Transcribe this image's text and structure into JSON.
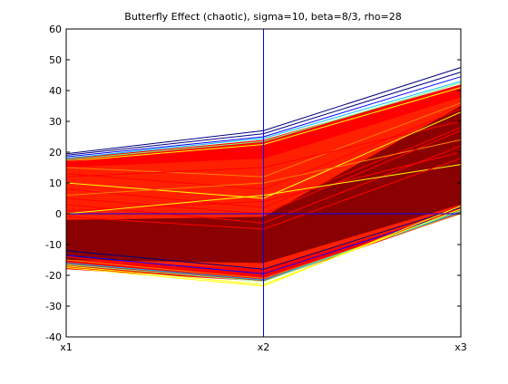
{
  "chart_data": {
    "type": "line",
    "title": "Butterfly Effect (chaotic), sigma=10, beta=8/3, rho=28",
    "categories": [
      "x1",
      "x2",
      "x3"
    ],
    "ylim": [
      -40,
      60
    ],
    "yticks": [
      "60",
      "50",
      "40",
      "30",
      "20",
      "10",
      "0",
      "-10",
      "-20",
      "-30",
      "-40"
    ],
    "grid": false,
    "legend": "none",
    "reference_lines": [
      {
        "axis": "x",
        "at": "x2",
        "color": "#0000ff"
      },
      {
        "axis": "y",
        "at": 0,
        "color": "#0000ff"
      }
    ],
    "colormap": [
      "#00007f",
      "#0000ff",
      "#00bfff",
      "#7fff7f",
      "#ffff00",
      "#ff7f00",
      "#ff0000",
      "#7f0000"
    ],
    "series": [
      {
        "values": [
          19.5,
          27.0,
          47.5
        ],
        "color": "#00007f"
      },
      {
        "values": [
          19.0,
          26.0,
          46.0
        ],
        "color": "#00007f"
      },
      {
        "values": [
          18.5,
          25.0,
          44.5
        ],
        "color": "#0000ff"
      },
      {
        "values": [
          18.0,
          24.5,
          43.0
        ],
        "color": "#00bfff"
      },
      {
        "values": [
          17.5,
          23.5,
          42.5
        ],
        "color": "#7fff7f"
      },
      {
        "values": [
          17.0,
          22.5,
          41.0
        ],
        "color": "#ffff00"
      },
      {
        "values": [
          17.0,
          20.0,
          40.0
        ],
        "color": "#ff0000"
      },
      {
        "values": [
          16.0,
          18.0,
          38.0
        ],
        "color": "#ff0000"
      },
      {
        "values": [
          15.0,
          12.0,
          36.0
        ],
        "color": "#ff7f00"
      },
      {
        "values": [
          13.0,
          8.0,
          34.0
        ],
        "color": "#ff0000"
      },
      {
        "values": [
          12.0,
          15.0,
          30.0
        ],
        "color": "#ff0000"
      },
      {
        "values": [
          10.0,
          5.0,
          33.0
        ],
        "color": "#ffff00"
      },
      {
        "values": [
          8.0,
          2.0,
          28.0
        ],
        "color": "#ff0000"
      },
      {
        "values": [
          6.0,
          10.0,
          24.0
        ],
        "color": "#ff7f00"
      },
      {
        "values": [
          5.0,
          0.0,
          27.0
        ],
        "color": "#ff0000"
      },
      {
        "values": [
          3.0,
          -3.0,
          22.0
        ],
        "color": "#ff0000"
      },
      {
        "values": [
          1.0,
          4.0,
          20.0
        ],
        "color": "#ff0000"
      },
      {
        "values": [
          0.0,
          6.0,
          16.0
        ],
        "color": "#ffff00"
      },
      {
        "values": [
          -1.0,
          -5.0,
          18.0
        ],
        "color": "#ff0000"
      },
      {
        "values": [
          -12.0,
          -18.0,
          2.0
        ],
        "color": "#00007f"
      },
      {
        "values": [
          -13.5,
          -19.5,
          1.0
        ],
        "color": "#0000ff"
      },
      {
        "values": [
          -14.0,
          -20.0,
          0.5
        ],
        "color": "#ff0000"
      },
      {
        "values": [
          -15.0,
          -21.0,
          0.0
        ],
        "color": "#ff7f00"
      },
      {
        "values": [
          -16.0,
          -21.5,
          0.5
        ],
        "color": "#00bfff"
      },
      {
        "values": [
          -16.5,
          -22.0,
          1.0
        ],
        "color": "#7fff7f"
      },
      {
        "values": [
          -17.0,
          -23.0,
          1.5
        ],
        "color": "#ffff00"
      },
      {
        "values": [
          -17.5,
          -23.5,
          2.5
        ],
        "color": "#ffff00"
      }
    ],
    "bands": [
      {
        "upper": [
          18.0,
          24.0,
          42.0
        ],
        "lower": [
          -18.0,
          -22.0,
          0.0
        ],
        "color": "#ff0000"
      },
      {
        "upper": [
          15.0,
          18.0,
          38.0
        ],
        "lower": [
          -15.0,
          -18.0,
          1.0
        ],
        "color": "#ff2000"
      },
      {
        "upper": [
          -2.0,
          -1.0,
          35.0
        ],
        "lower": [
          -15.0,
          -16.0,
          3.0
        ],
        "color": "#8b0000"
      }
    ]
  }
}
